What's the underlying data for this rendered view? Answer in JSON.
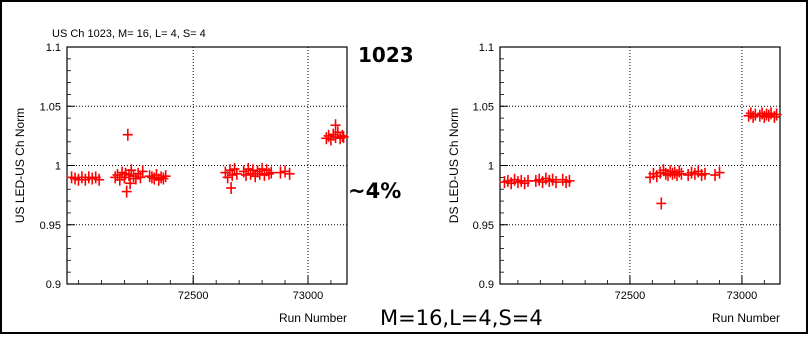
{
  "annotations": {
    "channel": "1023",
    "percent": "~4%",
    "params": "M=16,L=4,S=4"
  },
  "chart_data": [
    {
      "type": "scatter",
      "title": "US Ch 1023, M= 16, L= 4, S= 4",
      "xlabel": "Run Number",
      "ylabel": "US LED-US Ch Norm",
      "xlim": [
        71950,
        73170
      ],
      "ylim": [
        0.9,
        1.1
      ],
      "xticks": [
        "72500",
        "73000"
      ],
      "yticks": [
        "0.9",
        "0.95",
        "1",
        "1.05",
        "1.1"
      ],
      "grid": true,
      "marker_color": "#ff0000",
      "points": [
        [
          71970,
          0.99
        ],
        [
          71985,
          0.989
        ],
        [
          72000,
          0.988
        ],
        [
          72015,
          0.99
        ],
        [
          72030,
          0.988
        ],
        [
          72045,
          0.99
        ],
        [
          72060,
          0.989
        ],
        [
          72075,
          0.99
        ],
        [
          72090,
          0.988
        ],
        [
          72160,
          0.99
        ],
        [
          72170,
          0.992
        ],
        [
          72180,
          0.988
        ],
        [
          72190,
          0.994
        ],
        [
          72200,
          0.99
        ],
        [
          72205,
          0.993
        ],
        [
          72210,
          0.978
        ],
        [
          72215,
          1.026
        ],
        [
          72220,
          0.992
        ],
        [
          72225,
          0.985
        ],
        [
          72230,
          0.996
        ],
        [
          72240,
          0.991
        ],
        [
          72250,
          0.989
        ],
        [
          72260,
          0.993
        ],
        [
          72270,
          0.99
        ],
        [
          72280,
          0.995
        ],
        [
          72310,
          0.991
        ],
        [
          72320,
          0.99
        ],
        [
          72330,
          0.989
        ],
        [
          72340,
          0.992
        ],
        [
          72350,
          0.988
        ],
        [
          72360,
          0.99
        ],
        [
          72370,
          0.989
        ],
        [
          72380,
          0.991
        ],
        [
          72640,
          0.994
        ],
        [
          72650,
          0.99
        ],
        [
          72660,
          0.996
        ],
        [
          72665,
          0.981
        ],
        [
          72670,
          0.992
        ],
        [
          72680,
          0.997
        ],
        [
          72690,
          0.993
        ],
        [
          72720,
          0.995
        ],
        [
          72730,
          0.992
        ],
        [
          72740,
          0.997
        ],
        [
          72750,
          0.993
        ],
        [
          72760,
          0.996
        ],
        [
          72770,
          0.991
        ],
        [
          72780,
          0.995
        ],
        [
          72790,
          0.993
        ],
        [
          72800,
          0.997
        ],
        [
          72810,
          0.992
        ],
        [
          72820,
          0.996
        ],
        [
          72830,
          0.993
        ],
        [
          72840,
          0.994
        ],
        [
          72880,
          0.994
        ],
        [
          72900,
          0.995
        ],
        [
          72920,
          0.993
        ],
        [
          73080,
          1.023
        ],
        [
          73090,
          1.025
        ],
        [
          73100,
          1.022
        ],
        [
          73110,
          1.026
        ],
        [
          73120,
          1.024
        ],
        [
          73130,
          1.028
        ],
        [
          73140,
          1.023
        ],
        [
          73150,
          1.025
        ],
        [
          73155,
          1.024
        ],
        [
          73120,
          1.034
        ]
      ]
    },
    {
      "type": "scatter",
      "title": "",
      "xlabel": "Run Number",
      "ylabel": "DS LED-US Ch Norm",
      "xlim": [
        71920,
        73170
      ],
      "ylim": [
        0.9,
        1.1
      ],
      "xticks": [
        "72500",
        "73000"
      ],
      "yticks": [
        "0.9",
        "0.95",
        "1",
        "1.05",
        "1.1"
      ],
      "grid": true,
      "marker_color": "#ff0000",
      "points": [
        [
          71940,
          0.986
        ],
        [
          71955,
          0.987
        ],
        [
          71970,
          0.985
        ],
        [
          71985,
          0.988
        ],
        [
          72000,
          0.986
        ],
        [
          72015,
          0.987
        ],
        [
          72030,
          0.985
        ],
        [
          72045,
          0.987
        ],
        [
          72080,
          0.987
        ],
        [
          72095,
          0.988
        ],
        [
          72110,
          0.986
        ],
        [
          72125,
          0.989
        ],
        [
          72140,
          0.987
        ],
        [
          72155,
          0.988
        ],
        [
          72170,
          0.986
        ],
        [
          72200,
          0.988
        ],
        [
          72215,
          0.986
        ],
        [
          72230,
          0.987
        ],
        [
          72590,
          0.99
        ],
        [
          72605,
          0.993
        ],
        [
          72620,
          0.991
        ],
        [
          72635,
          0.994
        ],
        [
          72640,
          0.968
        ],
        [
          72650,
          0.996
        ],
        [
          72660,
          0.993
        ],
        [
          72670,
          0.992
        ],
        [
          72680,
          0.995
        ],
        [
          72690,
          0.993
        ],
        [
          72700,
          0.994
        ],
        [
          72710,
          0.992
        ],
        [
          72720,
          0.995
        ],
        [
          72730,
          0.993
        ],
        [
          72760,
          0.992
        ],
        [
          72775,
          0.994
        ],
        [
          72790,
          0.993
        ],
        [
          72805,
          0.995
        ],
        [
          72820,
          0.992
        ],
        [
          72835,
          0.993
        ],
        [
          72880,
          0.992
        ],
        [
          72900,
          0.994
        ],
        [
          73030,
          1.042
        ],
        [
          73040,
          1.044
        ],
        [
          73050,
          1.041
        ],
        [
          73060,
          1.043
        ],
        [
          73080,
          1.042
        ],
        [
          73090,
          1.044
        ],
        [
          73100,
          1.041
        ],
        [
          73110,
          1.043
        ],
        [
          73120,
          1.042
        ],
        [
          73130,
          1.044
        ],
        [
          73145,
          1.041
        ],
        [
          73155,
          1.043
        ]
      ]
    }
  ]
}
